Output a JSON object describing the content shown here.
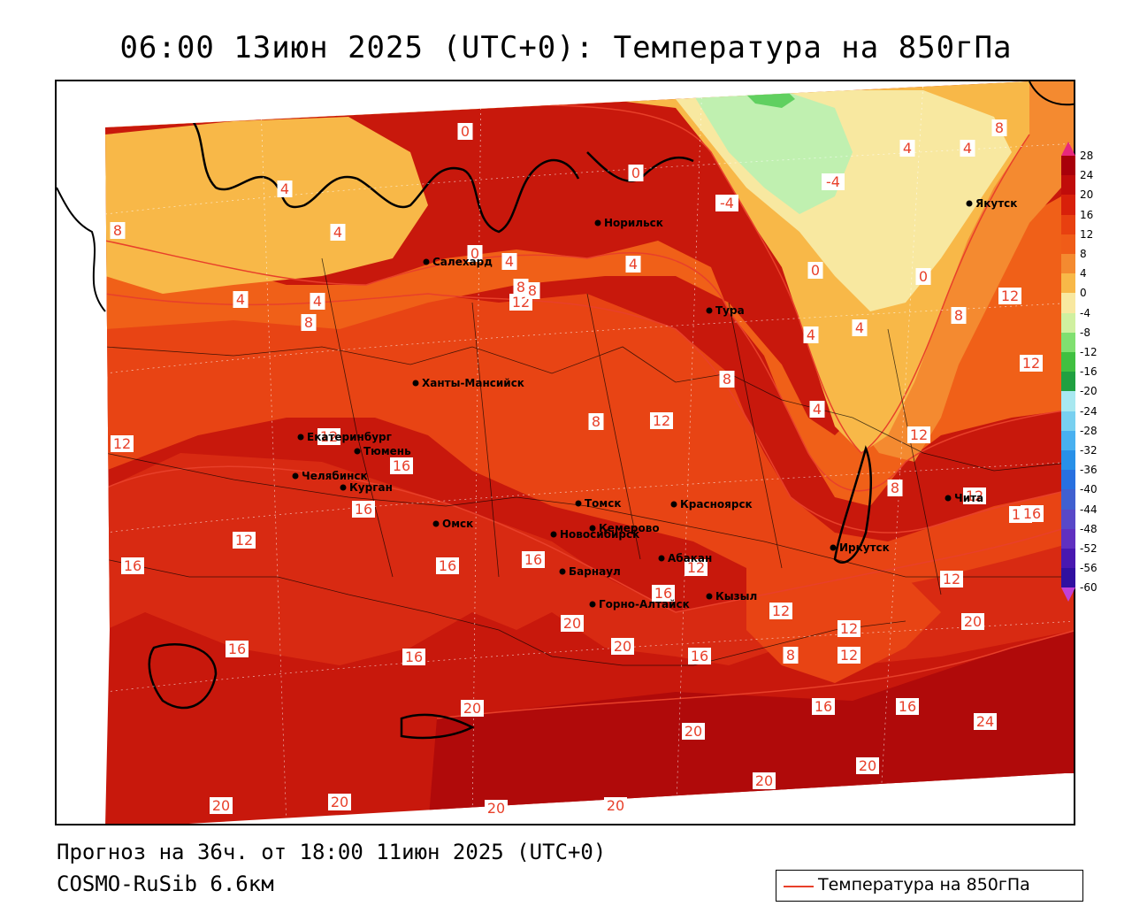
{
  "title": "06:00 13июн 2025 (UTC+0): Температура на 850гПа",
  "forecast_line": "Прогноз на 36ч. от 18:00 11июн 2025 (UTC+0)",
  "model_line": "COSMO-RuSib 6.6км",
  "legend_label": "Температура на 850гПа",
  "legend_color": "#e8402a",
  "colorbar": {
    "levels": [
      "28",
      "24",
      "20",
      "16",
      "12",
      "8",
      "4",
      "0",
      "-4",
      "-8",
      "-12",
      "-16",
      "-20",
      "-24",
      "-28",
      "-32",
      "-36",
      "-40",
      "-44",
      "-48",
      "-52",
      "-56",
      "-60"
    ],
    "colors": [
      "#e8287c",
      "#a8000a",
      "#c00c0a",
      "#d8200a",
      "#e84010",
      "#f05c18",
      "#f48a30",
      "#f8b848",
      "#f8e8a0",
      "#d0f0a0",
      "#80e070",
      "#40c040",
      "#20a040",
      "#a8e8f0",
      "#78d0f0",
      "#48b0f0",
      "#2890e8",
      "#2870e0",
      "#4060d0",
      "#5848c8",
      "#6030c0",
      "#4818b0",
      "#3010a0",
      "#c040d8"
    ]
  },
  "cities": [
    {
      "name": "Якутск"
    },
    {
      "name": "Норильск"
    },
    {
      "name": "Салехард"
    },
    {
      "name": "Тура"
    },
    {
      "name": "Ханты-Мансийск"
    },
    {
      "name": "Екатеринбург"
    },
    {
      "name": "Тюмень"
    },
    {
      "name": "Челябинск"
    },
    {
      "name": "Курган"
    },
    {
      "name": "Омск"
    },
    {
      "name": "Новосибирск"
    },
    {
      "name": "Томск"
    },
    {
      "name": "Кемерово"
    },
    {
      "name": "Красноярск"
    },
    {
      "name": "Барнаул"
    },
    {
      "name": "Абакан"
    },
    {
      "name": "Горно-Алтайск"
    },
    {
      "name": "Кызыл"
    },
    {
      "name": "Иркутск"
    },
    {
      "name": "Чита"
    }
  ],
  "contour_labels": [
    "0",
    "0",
    "0",
    "0",
    "4",
    "4",
    "4",
    "4",
    "4",
    "4",
    "4",
    "4",
    "4",
    "4",
    "4",
    "8",
    "8",
    "8",
    "8",
    "8",
    "8",
    "8",
    "8",
    "8",
    "12",
    "12",
    "12",
    "12",
    "12",
    "12",
    "12",
    "12",
    "12",
    "12",
    "12",
    "12",
    "12",
    "12",
    "16",
    "16",
    "16",
    "16",
    "16",
    "16",
    "16",
    "16",
    "16",
    "16",
    "16",
    "16",
    "16",
    "20",
    "20",
    "20",
    "20",
    "20",
    "20",
    "20",
    "20",
    "20",
    "20",
    "20",
    "24",
    "-4",
    "-4",
    "0",
    "8"
  ]
}
